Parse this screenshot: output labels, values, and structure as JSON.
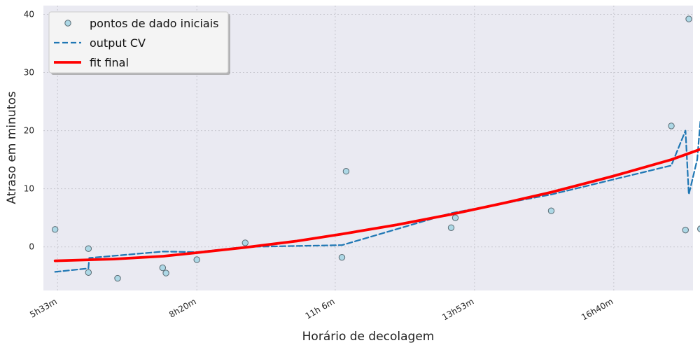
{
  "chart_data": {
    "type": "line",
    "title": "",
    "xlabel": "Horário de decolagem",
    "ylabel": "Atraso em minutos",
    "x_unit": "minutes since midnight",
    "xlim": [
      316,
      1095
    ],
    "ylim": [
      -7.5,
      41.5
    ],
    "x_ticks": [
      {
        "value": 333,
        "label": "5h33m"
      },
      {
        "value": 500,
        "label": "8h20m"
      },
      {
        "value": 666,
        "label": "11h 6m"
      },
      {
        "value": 833,
        "label": "13h53m"
      },
      {
        "value": 1000,
        "label": "16h40m"
      }
    ],
    "y_ticks": [
      0,
      10,
      20,
      30,
      40
    ],
    "grid": true,
    "legend_position": "top-left",
    "series": [
      {
        "name": "pontos de dado iniciais",
        "kind": "scatter",
        "color": "#add8e6",
        "x": [
          330,
          370,
          370,
          405,
          459,
          463,
          500,
          558,
          674,
          679,
          805,
          810,
          925,
          1069,
          1086,
          1090,
          1104
        ],
        "y": [
          3.0,
          -0.3,
          -4.4,
          -5.4,
          -3.6,
          -4.5,
          -2.2,
          0.7,
          -1.8,
          13.0,
          3.3,
          5.0,
          6.2,
          20.8,
          2.9,
          39.2,
          3.1
        ]
      },
      {
        "name": "output CV",
        "kind": "line",
        "style": "dashed",
        "color": "#1f77b4",
        "x": [
          330,
          370,
          371,
          460,
          500,
          558,
          674,
          805,
          925,
          1069,
          1086,
          1090,
          1100,
          1104
        ],
        "y": [
          -4.3,
          -3.7,
          -1.9,
          -0.8,
          -0.9,
          0.0,
          0.3,
          5.8,
          9.0,
          14.0,
          20.0,
          9.0,
          15.0,
          21.8
        ]
      },
      {
        "name": "fit final",
        "kind": "line",
        "style": "solid",
        "color": "#ff0000",
        "x": [
          330,
          400,
          460,
          500,
          558,
          620,
          674,
          740,
          805,
          870,
          925,
          1000,
          1069,
          1104
        ],
        "y": [
          -2.4,
          -2.1,
          -1.6,
          -1.0,
          -0.1,
          1.0,
          2.2,
          3.8,
          5.6,
          7.6,
          9.4,
          12.2,
          15.0,
          16.8
        ]
      }
    ]
  }
}
